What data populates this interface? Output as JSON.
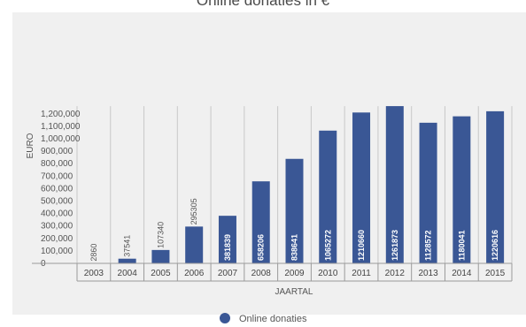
{
  "chart_data": {
    "type": "bar",
    "title": "Online donaties in €",
    "xlabel": "JAARTAL",
    "ylabel": "EURO",
    "categories": [
      "2003",
      "2004",
      "2005",
      "2006",
      "2007",
      "2008",
      "2009",
      "2010",
      "2011",
      "2012",
      "2013",
      "2014",
      "2015"
    ],
    "series": [
      {
        "name": "Online donaties",
        "values": [
          2860,
          37541,
          107340,
          295305,
          381839,
          658206,
          838641,
          1065272,
          1210660,
          1261873,
          1128572,
          1180041,
          1220616
        ]
      }
    ],
    "ylim": [
      0,
      1261873
    ],
    "yticks": [
      "0",
      "100,000",
      "200,000",
      "300,000",
      "400,000",
      "500,000",
      "600,000",
      "700,000",
      "800,000",
      "900,000",
      "1,000,000",
      "1,100,000",
      "1,200,000"
    ],
    "grid": true,
    "legend_position": "bottom",
    "colors": {
      "bar": "#3a5795",
      "background": "#f0f0f0",
      "grid": "#c8c8c8"
    }
  }
}
